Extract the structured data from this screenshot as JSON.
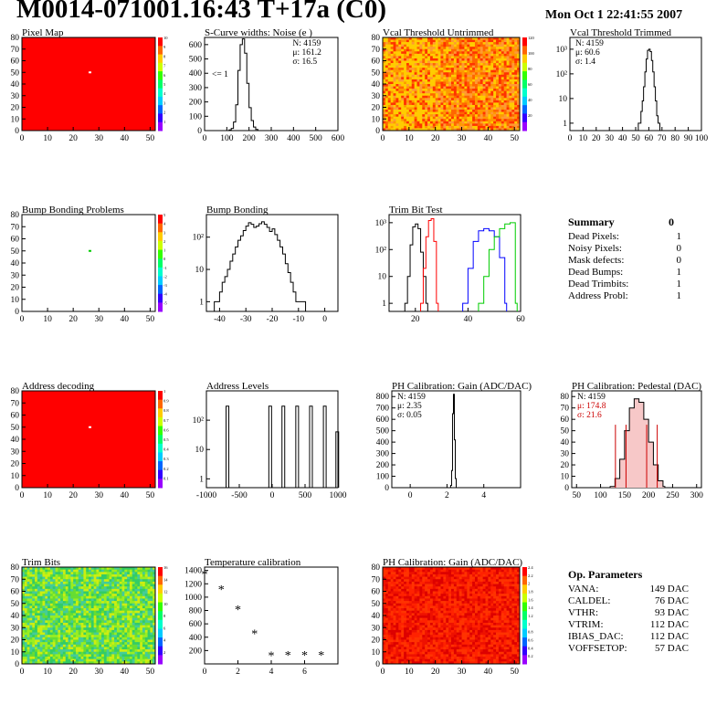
{
  "page": {
    "title": "M0014-071001.16:43 T+17a (C0)",
    "timestamp": "Mon Oct  1 22:41:55 2007"
  },
  "chart_data": [
    {
      "id": "pixel-map",
      "type": "heatmap",
      "title": "Pixel Map",
      "xlim": [
        0,
        52
      ],
      "ylim": [
        0,
        80
      ],
      "xticks": [
        0,
        10,
        20,
        30,
        40,
        50
      ],
      "yticks": [
        0,
        10,
        20,
        30,
        40,
        50,
        60,
        70,
        80
      ],
      "colorbar_ticks": [
        1,
        2,
        3,
        4,
        5,
        6,
        7,
        8,
        9,
        10
      ],
      "fill_color": "#ff0000",
      "marks": [
        {
          "x": 26,
          "y": 50,
          "color": "#ffffff"
        }
      ]
    },
    {
      "id": "scurve-noise",
      "type": "line",
      "title": "S-Curve widths: Noise (e )",
      "xlim": [
        0,
        600
      ],
      "ylim": [
        0,
        650
      ],
      "xticks": [
        0,
        100,
        200,
        300,
        400,
        500,
        600
      ],
      "yticks": [
        0,
        100,
        200,
        300,
        400,
        500,
        600
      ],
      "stats": [
        "N: 4159",
        "μ: 161.2",
        "σ: 16.5"
      ],
      "annotation": "<= 1",
      "series": [
        {
          "x": [
            100,
            110,
            120,
            130,
            140,
            150,
            160,
            170,
            180,
            190,
            200,
            210,
            220,
            230,
            240
          ],
          "y": [
            0,
            5,
            15,
            60,
            180,
            420,
            600,
            640,
            540,
            330,
            160,
            70,
            25,
            8,
            0
          ]
        }
      ]
    },
    {
      "id": "vcal-untrimmed",
      "type": "heatmap",
      "title": "Vcal Threshold Untrimmed",
      "xlim": [
        0,
        52
      ],
      "ylim": [
        0,
        80
      ],
      "xticks": [
        0,
        10,
        20,
        30,
        40,
        50
      ],
      "yticks": [
        0,
        10,
        20,
        30,
        40,
        50,
        60,
        70,
        80
      ],
      "colorbar_ticks": [
        20,
        40,
        60,
        80,
        100,
        120
      ],
      "palette": [
        "#ff3300",
        "#ff6600",
        "#ff9900",
        "#ffcc00",
        "#ff9933"
      ]
    },
    {
      "id": "vcal-trimmed",
      "type": "line",
      "title": "Vcal Threshold Trimmed",
      "yscale": "log",
      "xlim": [
        0,
        100
      ],
      "ylim": [
        0.5,
        3000
      ],
      "xticks": [
        0,
        10,
        20,
        30,
        40,
        50,
        60,
        70,
        80,
        90,
        100
      ],
      "yticks": [
        1,
        10,
        100,
        1000
      ],
      "ytick_labels": [
        "1",
        "10",
        "10²",
        "10³"
      ],
      "stats": [
        "N: 4159",
        "μ: 60.6",
        "σ:  1.4"
      ],
      "series": [
        {
          "x": [
            52,
            54,
            55,
            56,
            57,
            58,
            59,
            60,
            61,
            62,
            63,
            64,
            65,
            66,
            67
          ],
          "y": [
            1,
            3,
            8,
            30,
            120,
            400,
            900,
            1000,
            800,
            350,
            120,
            30,
            8,
            2,
            1
          ]
        }
      ]
    },
    {
      "id": "bump-problems",
      "type": "heatmap",
      "title": "Bump Bonding Problems",
      "xlim": [
        0,
        52
      ],
      "ylim": [
        0,
        80
      ],
      "xticks": [
        0,
        10,
        20,
        30,
        40,
        50
      ],
      "yticks": [
        0,
        10,
        20,
        30,
        40,
        50,
        60,
        70,
        80
      ],
      "colorbar_ticks": [
        -5,
        -4,
        -3,
        -2,
        -1,
        0,
        1,
        2,
        3,
        4,
        5
      ],
      "fill_color": "#ffffff",
      "marks": [
        {
          "x": 26,
          "y": 50,
          "color": "#00cc00"
        }
      ]
    },
    {
      "id": "bump-bonding",
      "type": "line",
      "title": "Bump Bonding",
      "yscale": "log",
      "xlim": [
        -45,
        5
      ],
      "ylim": [
        0.5,
        500
      ],
      "xticks": [
        -40,
        -30,
        -20,
        -10,
        0
      ],
      "yticks": [
        1,
        10,
        100
      ],
      "ytick_labels": [
        "1",
        "10",
        "10²"
      ],
      "series": [
        {
          "x": [
            -42,
            -41,
            -40,
            -39,
            -38,
            -37,
            -36,
            -35,
            -34,
            -33,
            -32,
            -31,
            -30,
            -29,
            -28,
            -27,
            -26,
            -25,
            -24,
            -23,
            -22,
            -21,
            -20,
            -19,
            -18,
            -17,
            -16,
            -15,
            -14,
            -13,
            -12,
            -11,
            -10,
            -9,
            -8
          ],
          "y": [
            1,
            1,
            2,
            4,
            6,
            10,
            18,
            30,
            50,
            80,
            110,
            160,
            220,
            280,
            250,
            200,
            220,
            260,
            300,
            250,
            200,
            150,
            180,
            120,
            80,
            50,
            30,
            15,
            8,
            4,
            2,
            1,
            1,
            1,
            1
          ]
        }
      ]
    },
    {
      "id": "trim-bit-test",
      "type": "line",
      "title": "Trim Bit Test",
      "yscale": "log",
      "xlim": [
        10,
        60
      ],
      "ylim": [
        0.5,
        2000
      ],
      "xticks": [
        20,
        40,
        60
      ],
      "yticks": [
        1,
        10,
        100,
        1000
      ],
      "ytick_labels": [
        "1",
        "10",
        "10²",
        "10³"
      ],
      "series": [
        {
          "color": "#000000",
          "x": [
            16,
            17,
            18,
            19,
            20,
            21,
            22,
            23,
            24
          ],
          "y": [
            1,
            10,
            150,
            700,
            900,
            600,
            80,
            10,
            1
          ]
        },
        {
          "color": "#ff0000",
          "x": [
            22,
            23,
            24,
            25,
            26,
            27,
            28
          ],
          "y": [
            1,
            20,
            300,
            1200,
            1400,
            200,
            1
          ]
        },
        {
          "color": "#0000ff",
          "x": [
            38,
            40,
            42,
            44,
            46,
            48,
            50,
            52,
            54
          ],
          "y": [
            1,
            20,
            200,
            500,
            600,
            500,
            300,
            50,
            1
          ]
        },
        {
          "color": "#00cc00",
          "x": [
            44,
            46,
            48,
            50,
            52,
            54,
            56,
            58
          ],
          "y": [
            1,
            10,
            100,
            300,
            600,
            900,
            1000,
            1
          ]
        }
      ]
    },
    {
      "id": "address-decoding",
      "type": "heatmap",
      "title": "Address decoding",
      "xlim": [
        0,
        52
      ],
      "ylim": [
        0,
        80
      ],
      "xticks": [
        0,
        10,
        20,
        30,
        40,
        50
      ],
      "yticks": [
        0,
        10,
        20,
        30,
        40,
        50,
        60,
        70,
        80
      ],
      "colorbar_ticks": [
        0.1,
        0.2,
        0.3,
        0.4,
        0.5,
        0.6,
        0.7,
        0.8,
        0.9,
        1
      ],
      "fill_color": "#ff0000",
      "marks": [
        {
          "x": 26,
          "y": 50,
          "color": "#ffffff"
        }
      ]
    },
    {
      "id": "address-levels",
      "type": "line",
      "title": "Address Levels",
      "yscale": "log",
      "xlim": [
        -1000,
        1000
      ],
      "ylim": [
        0.5,
        1000
      ],
      "xticks": [
        -1000,
        -500,
        0,
        500,
        1000
      ],
      "yticks": [
        1,
        10,
        100
      ],
      "ytick_labels": [
        "1",
        "10",
        "10²"
      ],
      "peaks": [
        {
          "x": -680,
          "h": 300
        },
        {
          "x": -30,
          "h": 300
        },
        {
          "x": 170,
          "h": 300
        },
        {
          "x": 380,
          "h": 300
        },
        {
          "x": 590,
          "h": 300
        },
        {
          "x": 800,
          "h": 300
        },
        {
          "x": 990,
          "h": 40
        }
      ]
    },
    {
      "id": "ph-gain",
      "type": "line",
      "title": "PH Calibration: Gain (ADC/DAC)",
      "xlim": [
        -1,
        6
      ],
      "ylim": [
        0,
        850
      ],
      "xticks": [
        0,
        2,
        4
      ],
      "yticks": [
        0,
        100,
        200,
        300,
        400,
        500,
        600,
        700,
        800
      ],
      "stats": [
        "N: 4159",
        "μ: 2.35",
        "σ: 0.05"
      ],
      "series": [
        {
          "x": [
            2.15,
            2.2,
            2.25,
            2.3,
            2.35,
            2.4,
            2.45,
            2.5
          ],
          "y": [
            0,
            20,
            150,
            650,
            820,
            420,
            80,
            0
          ]
        }
      ]
    },
    {
      "id": "ph-pedestal",
      "type": "line",
      "title": "PH Calibration: Pedestal (DAC)",
      "xlim": [
        40,
        310
      ],
      "ylim": [
        0,
        85
      ],
      "xticks": [
        50,
        100,
        150,
        200,
        250,
        300
      ],
      "yticks": [
        0,
        10,
        20,
        30,
        40,
        50,
        60,
        70,
        80
      ],
      "stats": [
        "N: 4159",
        "μ: 174.8",
        "σ: 21.6"
      ],
      "stats_colors": [
        "#000000",
        "#cc0000",
        "#cc0000"
      ],
      "cut_lines": [
        131,
        153,
        196,
        218
      ],
      "series": [
        {
          "x": [
            120,
            130,
            140,
            150,
            160,
            170,
            180,
            190,
            200,
            210,
            220,
            230
          ],
          "y": [
            1,
            8,
            25,
            50,
            70,
            78,
            75,
            60,
            40,
            20,
            6,
            1
          ]
        }
      ]
    },
    {
      "id": "trim-bits",
      "type": "heatmap",
      "title": "Trim Bits",
      "xlim": [
        0,
        52
      ],
      "ylim": [
        0,
        80
      ],
      "xticks": [
        0,
        10,
        20,
        30,
        40,
        50
      ],
      "yticks": [
        0,
        10,
        20,
        30,
        40,
        50,
        60,
        70,
        80
      ],
      "colorbar_ticks": [
        2,
        4,
        6,
        8,
        10,
        12,
        14,
        16
      ],
      "palette": [
        "#66dd33",
        "#99ee22",
        "#33cc66",
        "#ccee11",
        "#44cc99"
      ]
    },
    {
      "id": "temperature-calibration",
      "type": "scatter",
      "title": "Temperature calibration",
      "xlim": [
        0,
        8
      ],
      "ylim": [
        0,
        1450
      ],
      "xticks": [
        0,
        2,
        4,
        6
      ],
      "yticks": [
        200,
        400,
        600,
        800,
        1000,
        1200,
        1400
      ],
      "series": [
        {
          "x": [
            0,
            1,
            2,
            3,
            4,
            5,
            6,
            7
          ],
          "y": [
            1350,
            1120,
            820,
            460,
            130,
            140,
            140,
            140
          ]
        }
      ]
    },
    {
      "id": "ph-gain-map",
      "type": "heatmap",
      "title": "PH Calibration: Gain (ADC/DAC)",
      "xlim": [
        0,
        52
      ],
      "ylim": [
        0,
        80
      ],
      "xticks": [
        0,
        10,
        20,
        30,
        40,
        50
      ],
      "yticks": [
        0,
        10,
        20,
        30,
        40,
        50,
        60,
        70,
        80
      ],
      "colorbar_ticks": [
        0.2,
        0.4,
        0.6,
        0.8,
        1,
        1.2,
        1.4,
        1.6,
        1.8,
        2,
        2.2,
        2.4
      ],
      "palette": [
        "#ff2200",
        "#ee1100",
        "#ff3300",
        "#dd0000"
      ]
    }
  ],
  "summary": {
    "title": "Summary",
    "value": "0",
    "rows": [
      {
        "label": "Dead Pixels:",
        "value": "1"
      },
      {
        "label": "Noisy Pixels:",
        "value": "0"
      },
      {
        "label": "Mask defects:",
        "value": "0"
      },
      {
        "label": "Dead Bumps:",
        "value": "1"
      },
      {
        "label": "Dead Trimbits:",
        "value": "1"
      },
      {
        "label": "Address Probl:",
        "value": "1"
      }
    ]
  },
  "op_params": {
    "title": "Op. Parameters",
    "rows": [
      {
        "label": "VANA:",
        "value": "149 DAC"
      },
      {
        "label": "CALDEL:",
        "value": "76 DAC"
      },
      {
        "label": "VTHR:",
        "value": "93 DAC"
      },
      {
        "label": "VTRIM:",
        "value": "112 DAC"
      },
      {
        "label": "IBIAS_DAC:",
        "value": "112 DAC"
      },
      {
        "label": "VOFFSETOP:",
        "value": "57 DAC"
      }
    ]
  }
}
